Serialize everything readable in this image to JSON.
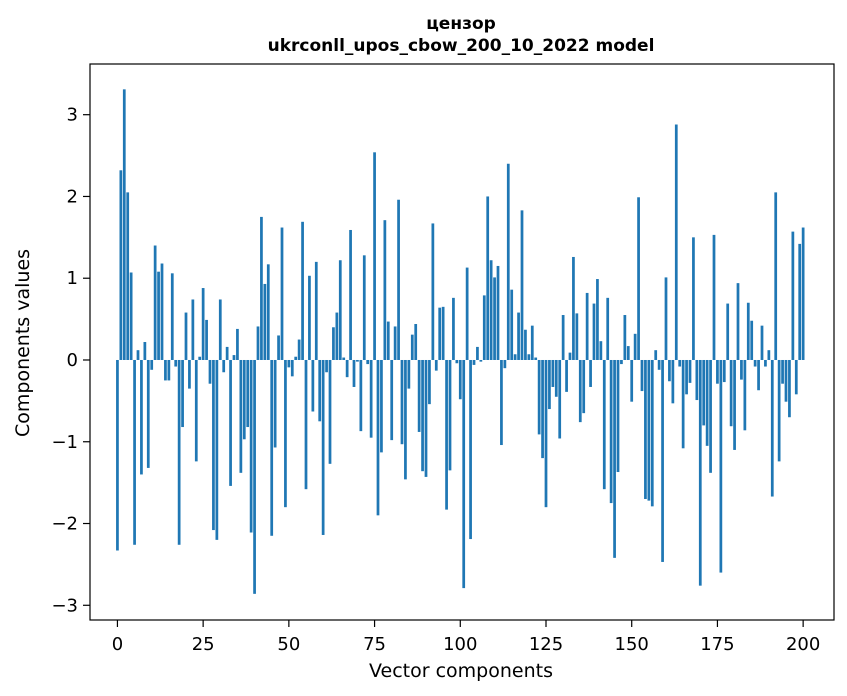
{
  "chart_data": {
    "type": "bar",
    "title": "цензор",
    "subtitle": "ukrconll_upos_cbow_200_10_2022 model",
    "xlabel": "Vector components",
    "ylabel": "Components values",
    "xlim": [
      -8,
      209
    ],
    "ylim": [
      -3.18,
      3.62
    ],
    "xticks": [
      0,
      25,
      50,
      75,
      100,
      125,
      150,
      175,
      200
    ],
    "yticks": [
      -3,
      -2,
      -1,
      0,
      1,
      2,
      3
    ],
    "ytick_labels": [
      "−3",
      "−2",
      "−1",
      "0",
      "1",
      "2",
      "3"
    ],
    "grid": false,
    "legend": "none",
    "bar_color": "#1f77b4",
    "values": [
      -2.33,
      2.32,
      3.31,
      2.05,
      1.07,
      -2.26,
      0.12,
      -1.4,
      0.22,
      -1.32,
      -0.12,
      1.4,
      1.08,
      1.18,
      -0.25,
      -0.25,
      1.06,
      -0.08,
      -2.26,
      -0.82,
      0.58,
      -0.35,
      0.74,
      -1.24,
      0.04,
      0.88,
      0.49,
      -0.29,
      -2.08,
      -2.2,
      0.74,
      -0.15,
      0.16,
      -1.54,
      0.06,
      0.38,
      -1.38,
      -0.97,
      -0.82,
      -2.11,
      -2.86,
      0.41,
      1.75,
      0.93,
      1.17,
      -2.15,
      -1.07,
      0.3,
      1.62,
      -1.8,
      -0.09,
      -0.2,
      0.04,
      0.25,
      1.69,
      -1.58,
      1.03,
      -0.63,
      1.2,
      -0.75,
      -2.14,
      -0.15,
      -1.27,
      0.4,
      0.58,
      1.22,
      0.03,
      -0.21,
      1.59,
      -0.33,
      -0.02,
      -0.87,
      1.28,
      -0.05,
      -0.95,
      2.54,
      -1.9,
      -1.13,
      1.71,
      0.47,
      -0.98,
      0.41,
      1.96,
      -1.03,
      -1.46,
      -0.35,
      0.31,
      0.44,
      -0.88,
      -1.36,
      -1.43,
      -0.54,
      1.67,
      -0.13,
      0.64,
      0.65,
      -1.83,
      -1.35,
      0.76,
      -0.04,
      -0.48,
      -2.79,
      1.13,
      -2.19,
      -0.06,
      0.16,
      -0.02,
      0.79,
      2.0,
      1.22,
      1.01,
      1.15,
      -1.04,
      -0.1,
      2.4,
      0.86,
      0.07,
      0.58,
      1.83,
      0.37,
      0.07,
      0.42,
      0.03,
      -0.91,
      -1.2,
      -1.8,
      -0.6,
      -0.33,
      -0.45,
      -0.96,
      0.55,
      -0.39,
      0.09,
      1.26,
      0.57,
      -0.76,
      -0.65,
      0.82,
      -0.33,
      0.69,
      0.99,
      0.23,
      -1.58,
      0.76,
      -1.75,
      -2.42,
      -1.37,
      -0.05,
      0.55,
      0.17,
      -0.51,
      0.32,
      1.99,
      -0.38,
      -1.7,
      -1.72,
      -1.79,
      0.12,
      -0.12,
      -2.47,
      1.01,
      -0.26,
      -0.53,
      2.88,
      -0.08,
      -1.08,
      -0.42,
      -0.28,
      1.5,
      -0.49,
      -2.76,
      -0.8,
      -1.05,
      -1.38,
      1.53,
      -0.29,
      -2.6,
      -0.27,
      0.69,
      -0.81,
      -1.1,
      0.94,
      -0.24,
      -0.86,
      0.7,
      0.48,
      -0.08,
      -0.37,
      0.42,
      -0.08,
      0.12,
      -1.67,
      2.05,
      -1.24,
      -0.29,
      -0.51,
      -0.7,
      1.57,
      -0.42,
      1.42,
      1.62
    ]
  }
}
